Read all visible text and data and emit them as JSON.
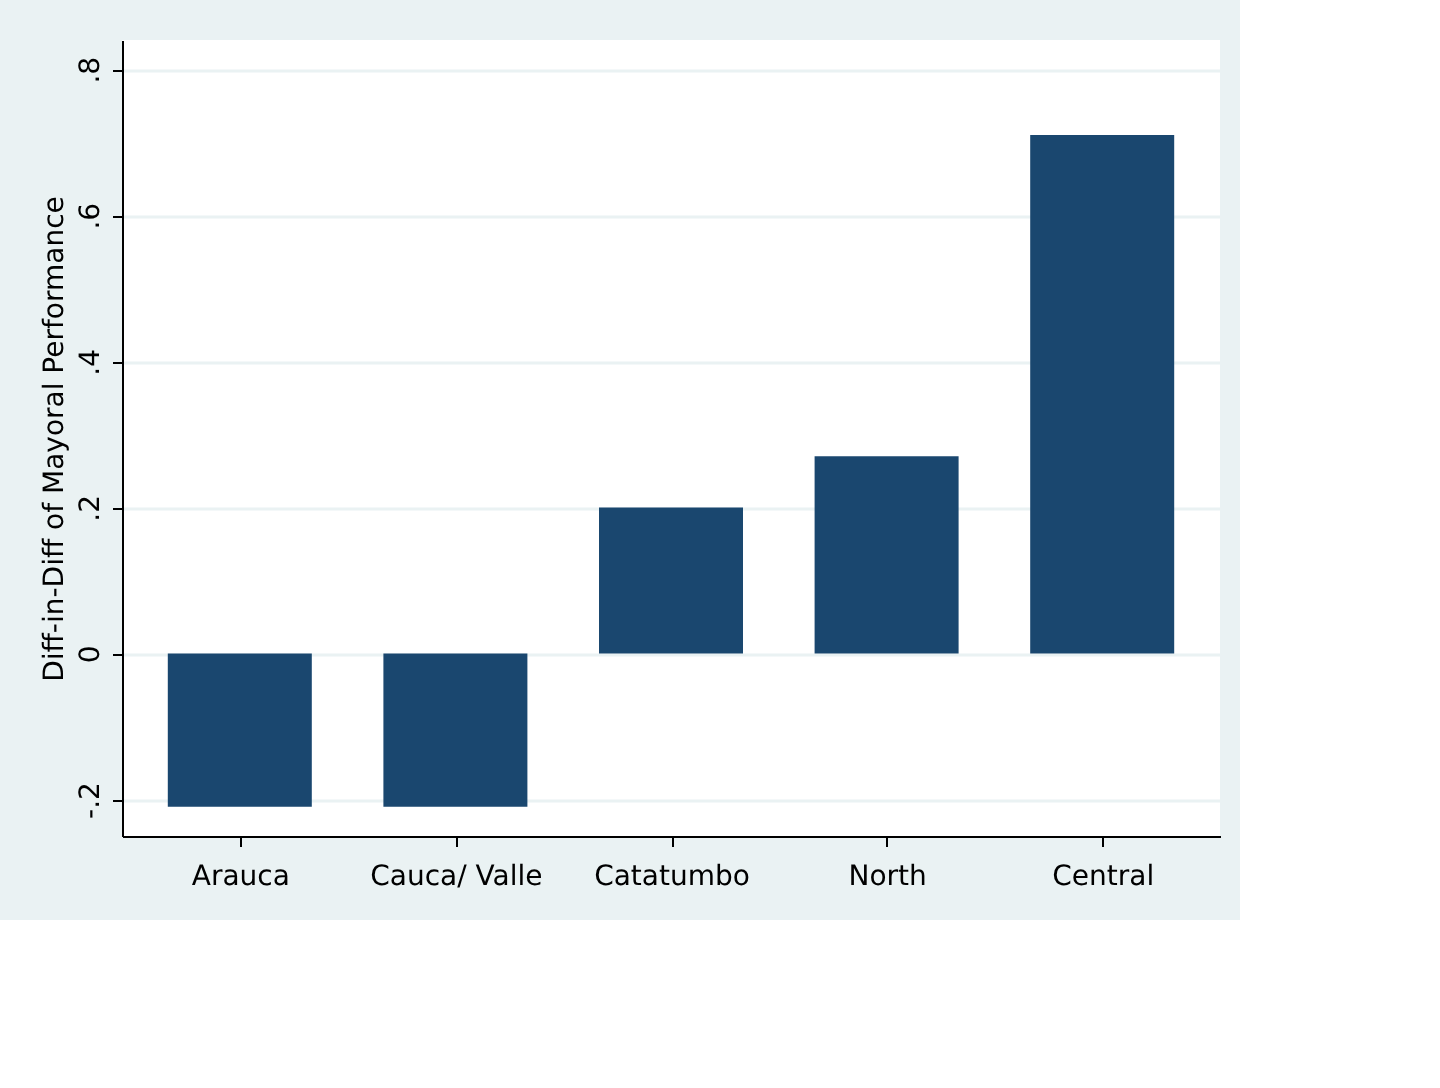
{
  "chart_data": {
    "type": "bar",
    "ylabel": "Diff-in-Diff of Mayoral Performance",
    "categories": [
      "Arauca",
      "Cauca/ Valle",
      "Catatumbo",
      "North",
      "Central"
    ],
    "values": [
      -0.21,
      -0.21,
      0.2,
      0.27,
      0.71
    ],
    "color": "#1a476f",
    "ylim": [
      -0.25,
      0.84
    ],
    "yticks": [
      {
        "value": -0.2,
        "label": "-.2"
      },
      0,
      {
        "value": 0.2,
        "label": ".2"
      },
      {
        "value": 0.4,
        "label": ".4"
      },
      {
        "value": 0.6,
        "label": ".6"
      },
      {
        "value": 0.8,
        "label": ".8"
      }
    ],
    "grid": "y"
  }
}
